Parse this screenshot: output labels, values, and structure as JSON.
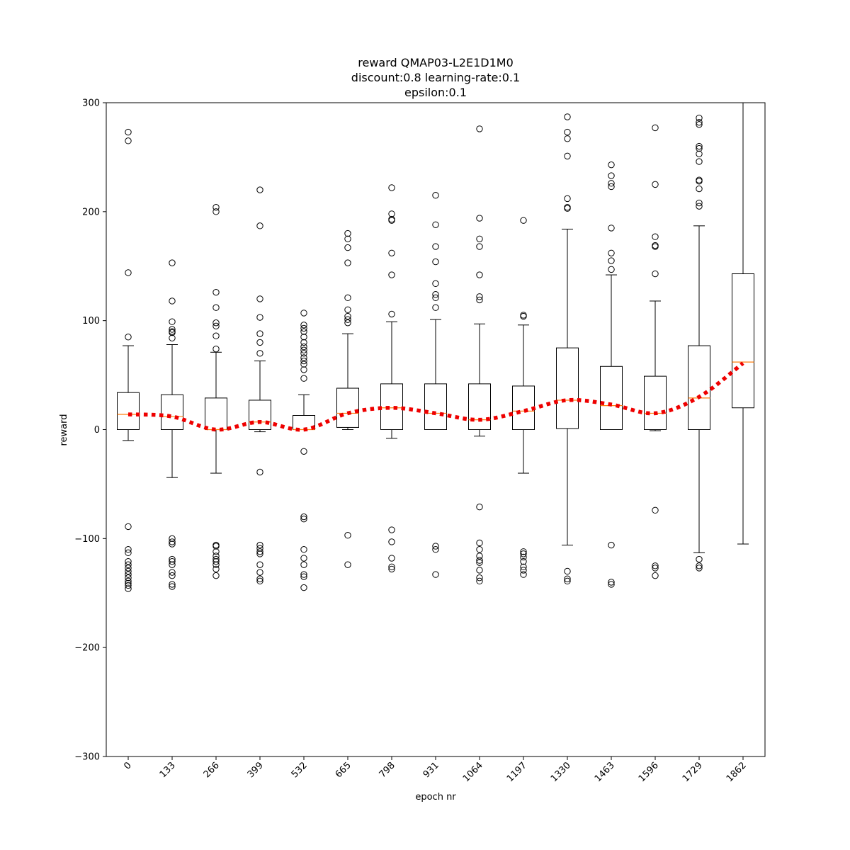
{
  "chart_data": {
    "type": "box",
    "title": [
      "reward QMAP03-L2E1D1M0",
      "discount:0.8 learning-rate:0.1",
      "epsilon:0.1"
    ],
    "xlabel": "epoch nr",
    "ylabel": "reward",
    "ylim": [
      -300,
      300
    ],
    "yticks": [
      -300,
      -200,
      -100,
      0,
      100,
      200,
      300
    ],
    "yticks_text": [
      "−300",
      "−200",
      "−100",
      "0",
      "100",
      "200",
      "300"
    ],
    "categories": [
      "0",
      "133",
      "266",
      "399",
      "532",
      "665",
      "798",
      "931",
      "1064",
      "1197",
      "1330",
      "1463",
      "1596",
      "1729",
      "1862"
    ],
    "colors": {
      "box": "#000000",
      "median": "#ff7f0e",
      "trend": "#ee0000"
    },
    "boxes": [
      {
        "wlo": -10,
        "q1": 0,
        "med": 14,
        "q3": 34,
        "whi": 77,
        "outliers": [
          273,
          265,
          144,
          85,
          -89,
          -110,
          -113,
          -121,
          -124,
          -127,
          -130,
          -133,
          -136,
          -139,
          -141,
          -143,
          -146
        ]
      },
      {
        "wlo": -44,
        "q1": 0,
        "med": 12,
        "q3": 32,
        "whi": 78,
        "outliers": [
          153,
          118,
          99,
          92,
          90,
          89,
          84,
          -100,
          -103,
          -105,
          -119,
          -121,
          -124,
          -131,
          -134,
          -142,
          -144
        ]
      },
      {
        "wlo": -40,
        "q1": 0,
        "med": 0,
        "q3": 29,
        "whi": 71,
        "outliers": [
          204,
          200,
          126,
          112,
          98,
          95,
          86,
          74,
          -106,
          -107,
          -112,
          -116,
          -119,
          -121,
          -124,
          -128,
          -134
        ]
      },
      {
        "wlo": -2,
        "q1": 0,
        "med": 7,
        "q3": 27,
        "whi": 63,
        "outliers": [
          220,
          187,
          120,
          103,
          88,
          80,
          70,
          -39,
          -106,
          -109,
          -112,
          -114,
          -124,
          -131,
          -137,
          -139
        ]
      },
      {
        "wlo": 0,
        "q1": 0,
        "med": 0,
        "q3": 13,
        "whi": 32,
        "outliers": [
          107,
          96,
          93,
          90,
          85,
          80,
          76,
          73,
          70,
          66,
          63,
          60,
          55,
          47,
          -20,
          -80,
          -82,
          -110,
          -118,
          -124,
          -133,
          -135,
          -145
        ]
      },
      {
        "wlo": 0,
        "q1": 2,
        "med": 15,
        "q3": 38,
        "whi": 88,
        "outliers": [
          180,
          175,
          167,
          153,
          121,
          110,
          104,
          101,
          98,
          -97,
          -124
        ]
      },
      {
        "wlo": -8,
        "q1": 0,
        "med": 20,
        "q3": 42,
        "whi": 99,
        "outliers": [
          222,
          198,
          193,
          192,
          162,
          142,
          106,
          -92,
          -103,
          -118,
          -126,
          -128
        ]
      },
      {
        "wlo": 0,
        "q1": 0,
        "med": 15,
        "q3": 42,
        "whi": 101,
        "outliers": [
          215,
          188,
          168,
          154,
          134,
          124,
          121,
          112,
          -107,
          -110,
          -133
        ]
      },
      {
        "wlo": -6,
        "q1": 0,
        "med": 9,
        "q3": 42,
        "whi": 97,
        "outliers": [
          276,
          194,
          175,
          168,
          142,
          122,
          119,
          -71,
          -104,
          -110,
          -116,
          -120,
          -122,
          -129,
          -136,
          -139
        ]
      },
      {
        "wlo": -40,
        "q1": 0,
        "med": 17,
        "q3": 40,
        "whi": 96,
        "outliers": [
          192,
          105,
          104,
          -112,
          -114,
          -117,
          -121,
          -126,
          -129,
          -133
        ]
      },
      {
        "wlo": -106,
        "q1": 1,
        "med": 27,
        "q3": 75,
        "whi": 184,
        "outliers": [
          287,
          273,
          267,
          251,
          212,
          204,
          203,
          -130,
          -137,
          -139
        ]
      },
      {
        "wlo": 0,
        "q1": 0,
        "med": 22,
        "q3": 58,
        "whi": 142,
        "outliers": [
          243,
          233,
          226,
          223,
          185,
          162,
          155,
          147,
          -106,
          -140,
          -142
        ]
      },
      {
        "wlo": -1,
        "q1": 0,
        "med": 15,
        "q3": 49,
        "whi": 118,
        "outliers": [
          277,
          225,
          177,
          169,
          168,
          143,
          -74,
          -125,
          -127,
          -134
        ]
      },
      {
        "wlo": -113,
        "q1": 0,
        "med": 29,
        "q3": 77,
        "whi": 187,
        "outliers": [
          286,
          282,
          280,
          260,
          258,
          253,
          246,
          229,
          228,
          221,
          208,
          205,
          -119,
          -125,
          -127
        ]
      },
      {
        "wlo": -105,
        "q1": 20,
        "med": 62,
        "q3": 143,
        "whi": 300,
        "outliers": []
      }
    ],
    "trend": [
      14,
      12,
      0,
      7,
      0,
      15,
      20,
      15,
      9,
      17,
      27,
      23,
      15,
      30,
      61
    ]
  }
}
